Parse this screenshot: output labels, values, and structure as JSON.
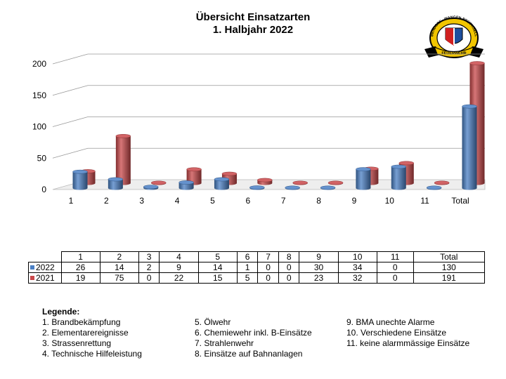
{
  "title_line1": "Übersicht Einsatzarten",
  "title_line2": "1. Halbjahr 2022",
  "colors": {
    "series_2022": "#4a7fc4",
    "series_2021": "#c9484a"
  },
  "logo": {
    "text": "DÜBENDORF · WANGEN-BRÜTTISELLEN",
    "banner": "FEUERWEHR",
    "icon": "fire-department-badge-icon"
  },
  "chart_data": {
    "type": "bar",
    "categories": [
      "1",
      "2",
      "3",
      "4",
      "5",
      "6",
      "7",
      "8",
      "9",
      "10",
      "11",
      "Total"
    ],
    "series": [
      {
        "name": "2022",
        "values": [
          26,
          14,
          2,
          9,
          14,
          1,
          0,
          0,
          30,
          34,
          0,
          130
        ]
      },
      {
        "name": "2021",
        "values": [
          19,
          75,
          0,
          22,
          15,
          5,
          0,
          0,
          23,
          32,
          0,
          191
        ]
      }
    ],
    "y_ticks": [
      0,
      50,
      100,
      150,
      200
    ],
    "ylim": [
      0,
      200
    ],
    "grid": true,
    "style": "3d-cylinder"
  },
  "table": {
    "header": [
      "1",
      "2",
      "3",
      "4",
      "5",
      "6",
      "7",
      "8",
      "9",
      "10",
      "11",
      "Total"
    ],
    "rows": [
      {
        "label": "2022",
        "values": [
          "26",
          "14",
          "2",
          "9",
          "14",
          "1",
          "0",
          "0",
          "30",
          "34",
          "0",
          "130"
        ]
      },
      {
        "label": "2021",
        "values": [
          "19",
          "75",
          "0",
          "22",
          "15",
          "5",
          "0",
          "0",
          "23",
          "32",
          "0",
          "191"
        ]
      }
    ]
  },
  "legend": {
    "heading": "Legende:",
    "col1": [
      "1.  Brandbekämpfung",
      "2.  Elementarereignisse",
      "3.  Strassenrettung",
      "4.  Technische Hilfeleistung"
    ],
    "col2": [
      "5. Ölwehr",
      "6. Chemiewehr inkl. B-Einsätze",
      "7. Strahlenwehr",
      "8. Einsätze auf Bahnanlagen"
    ],
    "col3": [
      "9. BMA unechte Alarme",
      "10. Verschiedene Einsätze",
      "11. keine alarmmässige Einsätze"
    ]
  }
}
